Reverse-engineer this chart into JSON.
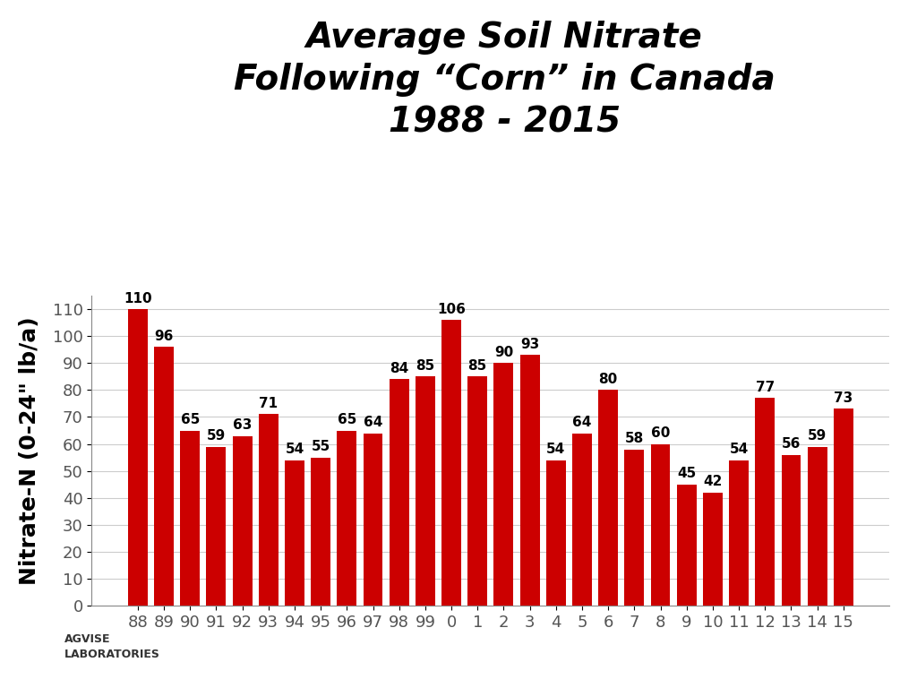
{
  "title_line1": "Average Soil Nitrate",
  "title_line2": "Following “Corn” in Canada",
  "title_line3": "1988 - 2015",
  "categories": [
    "88",
    "89",
    "90",
    "91",
    "92",
    "93",
    "94",
    "95",
    "96",
    "97",
    "98",
    "99",
    "0",
    "1",
    "2",
    "3",
    "4",
    "5",
    "6",
    "7",
    "8",
    "9",
    "10",
    "11",
    "12",
    "13",
    "14",
    "15"
  ],
  "values": [
    110,
    96,
    65,
    59,
    63,
    71,
    54,
    55,
    65,
    64,
    84,
    85,
    106,
    85,
    90,
    93,
    54,
    64,
    80,
    58,
    60,
    45,
    42,
    54,
    77,
    56,
    59,
    73
  ],
  "bar_color": "#cc0000",
  "ylabel": "Nitrate-N (0-24\" lb/a)",
  "ylim": [
    0,
    115
  ],
  "yticks": [
    0,
    10,
    20,
    30,
    40,
    50,
    60,
    70,
    80,
    90,
    100,
    110
  ],
  "background_color": "#ffffff",
  "grid_color": "#cccccc",
  "label_fontsize": 11,
  "title_fontsize": 28,
  "ylabel_fontsize": 18
}
